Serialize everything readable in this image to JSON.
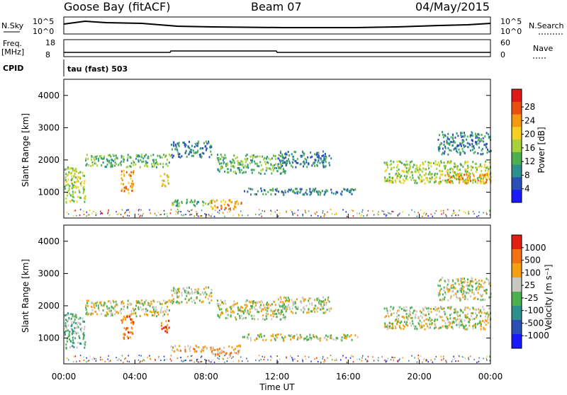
{
  "header": {
    "station": "Goose Bay (fitACF)",
    "beam": "Beam 07",
    "date": "04/May/2015"
  },
  "top_panels": {
    "nsky_label": "N.Sky",
    "nsky_ticks": [
      "10^5",
      "10^0"
    ],
    "nsearch_label": "N.Search",
    "nsearch_ticks": [
      "10^5",
      "10^0"
    ],
    "freq_label_1": "Freq.",
    "freq_label_2": "[MHz]",
    "freq_ticks": [
      "18",
      "8"
    ],
    "nave_label": "Nave",
    "nave_ticks": [
      "60",
      "0"
    ],
    "cpid_label": "CPID",
    "cpid_text": "tau (fast) 503"
  },
  "chart_data": [
    {
      "type": "heatmap",
      "name": "power",
      "ylabel": "Slant Range [km]",
      "yticks": [
        "1000",
        "2000",
        "3000",
        "4000"
      ],
      "ylim": [
        200,
        4500
      ],
      "colorbar_label": "Power [dB]",
      "colorbar_ticks": [
        "4",
        "8",
        "12",
        "16",
        "20",
        "24",
        "28"
      ],
      "colors": [
        "#1a1aff",
        "#2b4fb8",
        "#2e8f8f",
        "#4caf50",
        "#a8d23a",
        "#f5d020",
        "#f59a10",
        "#e85010",
        "#e01818"
      ],
      "ranges": [
        {
          "t0": 0.0,
          "t1": 1.2,
          "r0": 700,
          "r1": 1800,
          "level": 4
        },
        {
          "t0": 1.2,
          "t1": 6.0,
          "r0": 1800,
          "r1": 2200,
          "level": 3
        },
        {
          "t0": 3.2,
          "t1": 3.9,
          "r0": 1000,
          "r1": 1700,
          "level": 6
        },
        {
          "t0": 5.4,
          "t1": 5.9,
          "r0": 1200,
          "r1": 1600,
          "level": 5
        },
        {
          "t0": 6.0,
          "t1": 8.3,
          "r0": 2100,
          "r1": 2600,
          "level": 2
        },
        {
          "t0": 6.0,
          "t1": 8.3,
          "r0": 600,
          "r1": 800,
          "level": 3
        },
        {
          "t0": 8.2,
          "t1": 10.0,
          "r0": 500,
          "r1": 800,
          "level": 6
        },
        {
          "t0": 8.6,
          "t1": 12.5,
          "r0": 1600,
          "r1": 2200,
          "level": 3
        },
        {
          "t0": 10.0,
          "t1": 16.5,
          "r0": 950,
          "r1": 1150,
          "level": 2
        },
        {
          "t0": 12.0,
          "t1": 15.0,
          "r0": 1800,
          "r1": 2300,
          "level": 2
        },
        {
          "t0": 18.0,
          "t1": 24.0,
          "r0": 1300,
          "r1": 2000,
          "level": 4
        },
        {
          "t0": 21.0,
          "t1": 24.0,
          "r0": 1300,
          "r1": 1600,
          "level": 6
        },
        {
          "t0": 21.0,
          "t1": 24.0,
          "r0": 2200,
          "r1": 2900,
          "level": 2
        }
      ]
    },
    {
      "type": "heatmap",
      "name": "velocity",
      "ylabel": "Slant Range [km]",
      "yticks": [
        "1000",
        "2000",
        "3000",
        "4000"
      ],
      "ylim": [
        200,
        4500
      ],
      "colorbar_label": "Velocity [m s⁻¹]",
      "colorbar_ticks": [
        "1000",
        "500",
        "100",
        "25",
        "-25",
        "-100",
        "-500",
        "-1000"
      ],
      "colors": [
        "#1a1aff",
        "#2b4fb8",
        "#2e8f8f",
        "#4caf50",
        "#c8c8c0",
        "#f5a010",
        "#f57010",
        "#e02010"
      ],
      "ranges": [
        {
          "t0": 0.0,
          "t1": 1.2,
          "r0": 700,
          "r1": 1800,
          "level": 3
        },
        {
          "t0": 1.2,
          "t1": 6.0,
          "r0": 1700,
          "r1": 2200,
          "level": 4
        },
        {
          "t0": 3.2,
          "t1": 3.9,
          "r0": 1000,
          "r1": 1700,
          "level": 6
        },
        {
          "t0": 5.4,
          "t1": 5.9,
          "r0": 1200,
          "r1": 1600,
          "level": 6
        },
        {
          "t0": 6.0,
          "t1": 8.3,
          "r0": 2100,
          "r1": 2600,
          "level": 4
        },
        {
          "t0": 6.0,
          "t1": 8.3,
          "r0": 600,
          "r1": 800,
          "level": 5
        },
        {
          "t0": 8.2,
          "t1": 10.0,
          "r0": 500,
          "r1": 800,
          "level": 5
        },
        {
          "t0": 8.6,
          "t1": 12.5,
          "r0": 1600,
          "r1": 2200,
          "level": 4
        },
        {
          "t0": 10.0,
          "t1": 16.5,
          "r0": 950,
          "r1": 1150,
          "level": 4
        },
        {
          "t0": 12.0,
          "t1": 15.0,
          "r0": 1800,
          "r1": 2300,
          "level": 4
        },
        {
          "t0": 18.0,
          "t1": 24.0,
          "r0": 1300,
          "r1": 2000,
          "level": 4
        },
        {
          "t0": 21.0,
          "t1": 24.0,
          "r0": 2200,
          "r1": 2900,
          "level": 4
        }
      ]
    }
  ],
  "x_axis": {
    "label": "Time UT",
    "ticks": [
      "00:00",
      "04:00",
      "08:00",
      "12:00",
      "16:00",
      "20:00",
      "00:00"
    ],
    "xlim": [
      0,
      24
    ]
  }
}
